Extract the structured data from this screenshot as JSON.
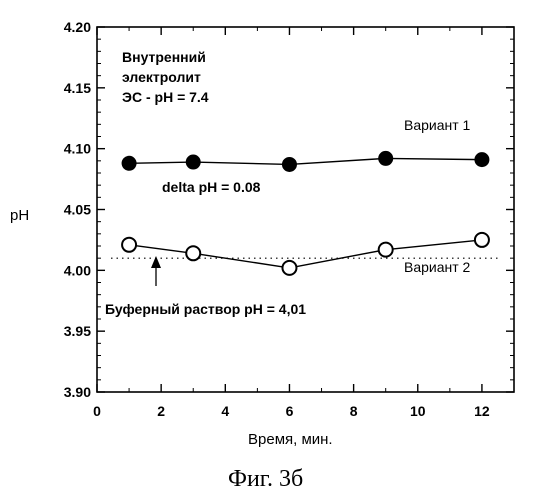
{
  "chart_data": {
    "type": "scatter",
    "xlabel": "Время, мин.",
    "ylabel": "pH",
    "xlim": [
      0,
      13
    ],
    "ylim": [
      3.9,
      4.2
    ],
    "x_ticks": [
      "0",
      "2",
      "4",
      "6",
      "8",
      "10",
      "12"
    ],
    "y_ticks": [
      "3.90",
      "3.95",
      "4.00",
      "4.05",
      "4.10",
      "4.15",
      "4.20"
    ],
    "grid": false,
    "series": [
      {
        "name": "Вариант 1",
        "marker": "filled-circle",
        "x": [
          1,
          3,
          6,
          9,
          12
        ],
        "y": [
          4.088,
          4.089,
          4.087,
          4.092,
          4.091
        ]
      },
      {
        "name": "Вариант 2",
        "marker": "open-circle",
        "x": [
          1,
          3,
          6,
          9,
          12
        ],
        "y": [
          4.021,
          4.014,
          4.002,
          4.017,
          4.025
        ]
      }
    ],
    "reference_line": {
      "label": "Буферный раствор pH = 4,01",
      "y": 4.01,
      "style": "dotted"
    },
    "annotations": {
      "electrolyte_line1": "Внутренний",
      "electrolyte_line2": "электролит",
      "electrolyte_line3": "ЭС - pH = 7.4",
      "delta": "delta pH = 0.08"
    }
  },
  "caption": "Фиг. 3б",
  "colors": {
    "ink": "#000000",
    "background": "#ffffff"
  }
}
